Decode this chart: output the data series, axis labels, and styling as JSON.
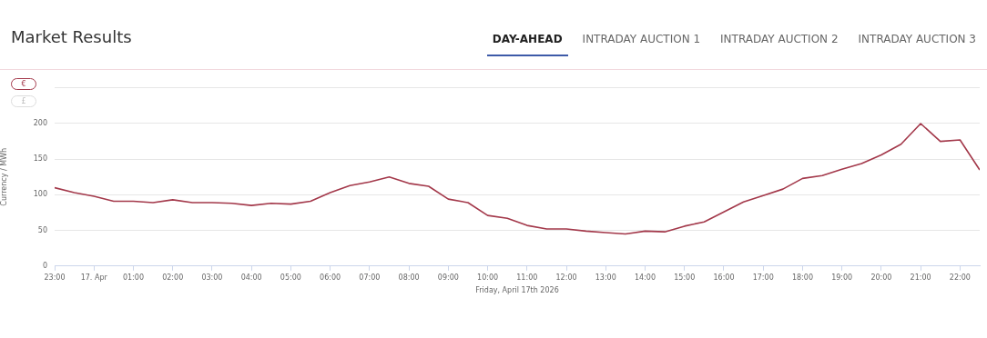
{
  "chart_data": {
    "type": "line",
    "title": "Market Results",
    "xlabel": "Friday, April 17th 2026",
    "ylabel": "Currency / MWh",
    "annotations": [
      "DAY-AHEAD",
      "INTRADAY AUCTION 1",
      "INTRADAY AUCTION 2",
      "INTRADAY AUCTION 3",
      "€",
      "£"
    ],
    "x": [
      "2026-04-16T23:00",
      "2026-04-16T23:30",
      "2026-04-17T00:00",
      "2026-04-17T00:30",
      "2026-04-17T01:00",
      "2026-04-17T01:30",
      "2026-04-17T02:00",
      "2026-04-17T02:30",
      "2026-04-17T03:00",
      "2026-04-17T03:30",
      "2026-04-17T04:00",
      "2026-04-17T04:30",
      "2026-04-17T05:00",
      "2026-04-17T05:30",
      "2026-04-17T06:00",
      "2026-04-17T06:30",
      "2026-04-17T07:00",
      "2026-04-17T07:30",
      "2026-04-17T08:00",
      "2026-04-17T08:30",
      "2026-04-17T09:00",
      "2026-04-17T09:30",
      "2026-04-17T10:00",
      "2026-04-17T10:30",
      "2026-04-17T11:00",
      "2026-04-17T11:30",
      "2026-04-17T12:00",
      "2026-04-17T12:30",
      "2026-04-17T13:00",
      "2026-04-17T13:30",
      "2026-04-17T14:00",
      "2026-04-17T14:30",
      "2026-04-17T15:00",
      "2026-04-17T15:30",
      "2026-04-17T16:00",
      "2026-04-17T16:30",
      "2026-04-17T17:00",
      "2026-04-17T17:30",
      "2026-04-17T18:00",
      "2026-04-17T18:30",
      "2026-04-17T19:00",
      "2026-04-17T19:30",
      "2026-04-17T20:00",
      "2026-04-17T20:30",
      "2026-04-17T21:00",
      "2026-04-17T21:30",
      "2026-04-17T22:00",
      "2026-04-17T22:30"
    ],
    "series": [
      {
        "color": "#a3384a",
        "values": [
          110,
          103,
          98,
          91,
          91,
          89,
          93,
          89,
          89,
          88,
          85,
          88,
          87,
          91,
          103,
          113,
          118,
          125,
          116,
          112,
          94,
          89,
          71,
          67,
          57,
          52,
          52,
          49,
          47,
          45,
          49,
          48,
          56,
          62,
          76,
          90,
          99,
          108,
          123,
          127,
          136,
          144,
          156,
          171,
          200,
          175,
          177,
          135
        ]
      }
    ],
    "xlim": [
      "2026-04-16T23:00",
      "2026-04-17T22:30"
    ],
    "xticks": [
      {
        "value": "2026-04-16T23:00",
        "label": "23:00"
      },
      {
        "value": "2026-04-17T00:00",
        "label": "17. Apr"
      },
      {
        "value": "2026-04-17T01:00",
        "label": "01:00"
      },
      {
        "value": "2026-04-17T02:00",
        "label": "02:00"
      },
      {
        "value": "2026-04-17T03:00",
        "label": "03:00"
      },
      {
        "value": "2026-04-17T04:00",
        "label": "04:00"
      },
      {
        "value": "2026-04-17T05:00",
        "label": "05:00"
      },
      {
        "value": "2026-04-17T06:00",
        "label": "06:00"
      },
      {
        "value": "2026-04-17T07:00",
        "label": "07:00"
      },
      {
        "value": "2026-04-17T08:00",
        "label": "08:00"
      },
      {
        "value": "2026-04-17T09:00",
        "label": "09:00"
      },
      {
        "value": "2026-04-17T10:00",
        "label": "10:00"
      },
      {
        "value": "2026-04-17T11:00",
        "label": "11:00"
      },
      {
        "value": "2026-04-17T12:00",
        "label": "12:00"
      },
      {
        "value": "2026-04-17T13:00",
        "label": "13:00"
      },
      {
        "value": "2026-04-17T14:00",
        "label": "14:00"
      },
      {
        "value": "2026-04-17T15:00",
        "label": "15:00"
      },
      {
        "value": "2026-04-17T16:00",
        "label": "16:00"
      },
      {
        "value": "2026-04-17T17:00",
        "label": "17:00"
      },
      {
        "value": "2026-04-17T18:00",
        "label": "18:00"
      },
      {
        "value": "2026-04-17T19:00",
        "label": "19:00"
      },
      {
        "value": "2026-04-17T20:00",
        "label": "20:00"
      },
      {
        "value": "2026-04-17T21:00",
        "label": "21:00"
      },
      {
        "value": "2026-04-17T22:00",
        "label": "22:00"
      }
    ],
    "ylim": [
      0,
      250
    ],
    "yticks": [
      0,
      50,
      100,
      150,
      200,
      {
        "value": 250,
        "label": null
      }
    ],
    "grid": "y",
    "legend": false,
    "marker": "none",
    "line_style": "solid"
  }
}
